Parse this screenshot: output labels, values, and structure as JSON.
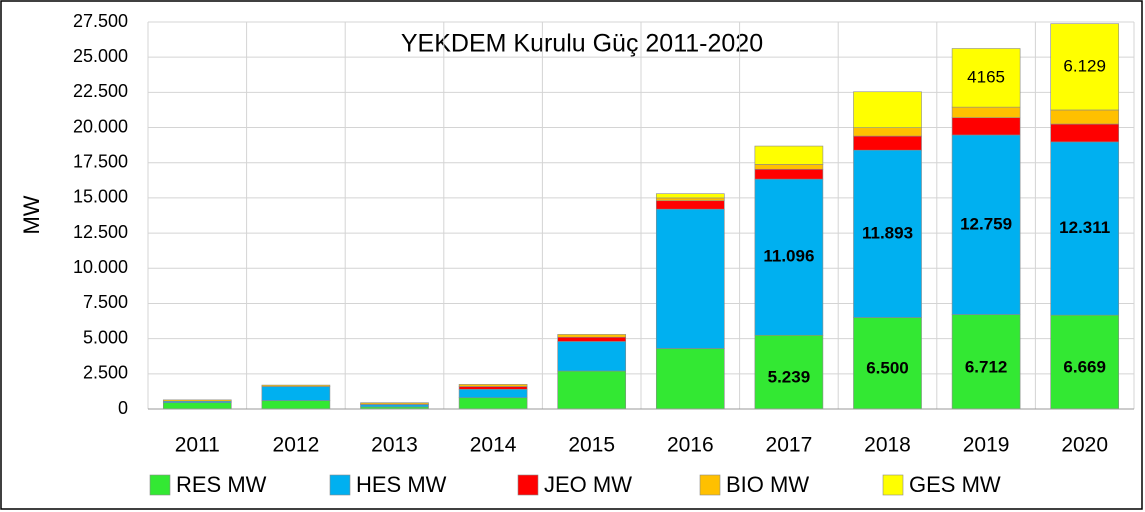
{
  "chart_data": {
    "type": "stacked_bar",
    "title": "YEKDEM  Kurulu Güç 2011-2020",
    "y_label": "MW",
    "categories": [
      "2011",
      "2012",
      "2013",
      "2014",
      "2015",
      "2016",
      "2017",
      "2018",
      "2019",
      "2020"
    ],
    "series": [
      {
        "name": "RES MW",
        "color": "#33e833",
        "values": [
          450,
          600,
          150,
          800,
          2700,
          4300,
          5239,
          6500,
          6712,
          6669
        ],
        "value_labels": [
          null,
          null,
          null,
          null,
          null,
          null,
          "5.239",
          "6.500",
          "6.712",
          "6.669"
        ]
      },
      {
        "name": "HES MW",
        "color": "#00b0f0",
        "values": [
          100,
          1000,
          150,
          600,
          2100,
          9900,
          11096,
          11893,
          12759,
          12311
        ],
        "value_labels": [
          null,
          null,
          null,
          null,
          null,
          null,
          "11.096",
          "11.893",
          "12.759",
          "12.311"
        ]
      },
      {
        "name": "JEO MW",
        "color": "#ff0000",
        "values": [
          0,
          0,
          50,
          200,
          300,
          600,
          700,
          1000,
          1230,
          1270
        ]
      },
      {
        "name": "BIO MW",
        "color": "#ffc000",
        "values": [
          100,
          100,
          100,
          150,
          200,
          200,
          350,
          600,
          750,
          1000
        ]
      },
      {
        "name": "GES MW",
        "color": "#ffff00",
        "values": [
          0,
          0,
          0,
          0,
          0,
          300,
          1300,
          2550,
          4165,
          6129
        ],
        "value_labels": [
          null,
          null,
          null,
          null,
          null,
          null,
          null,
          null,
          "4165",
          "6.129"
        ]
      }
    ],
    "ylim": [
      0,
      27500
    ],
    "yticks": [
      0,
      {
        "value": 2500,
        "label": "2.500"
      },
      {
        "value": 5000,
        "label": "5.000"
      },
      {
        "value": 7500,
        "label": "7.500"
      },
      {
        "value": 10000,
        "label": "10.000"
      },
      {
        "value": 12500,
        "label": "12.500"
      },
      {
        "value": 15000,
        "label": "15.000"
      },
      {
        "value": 17500,
        "label": "17.500"
      },
      {
        "value": 20000,
        "label": "20.000"
      },
      {
        "value": 22500,
        "label": "22.500"
      },
      {
        "value": 25000,
        "label": "25.000"
      },
      {
        "value": 27500,
        "label": "27.500"
      }
    ],
    "grid": true,
    "legend": "bottom"
  }
}
